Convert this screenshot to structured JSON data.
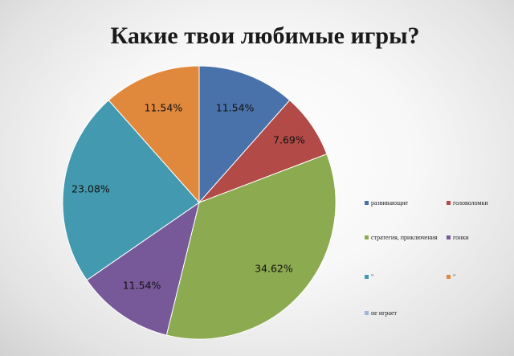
{
  "chart_data": {
    "type": "pie",
    "title": "Какие твои любимые игры?",
    "categories": [
      "развивающие",
      "головоломки",
      "стратегия, приключения",
      "гонки",
      "\"",
      "\"",
      "не играет"
    ],
    "values": [
      11.54,
      7.69,
      34.62,
      11.54,
      23.08,
      11.54,
      0
    ],
    "labels": [
      "11.54%",
      "7.69%",
      "34.62%",
      "11.54%",
      "23.08%",
      "11.54%",
      ""
    ],
    "colors": [
      "#4a72aa",
      "#b24a47",
      "#8caa4f",
      "#77599a",
      "#4399b0",
      "#e0883c",
      "#9db5dc"
    ],
    "legend": "right",
    "grid": false
  }
}
